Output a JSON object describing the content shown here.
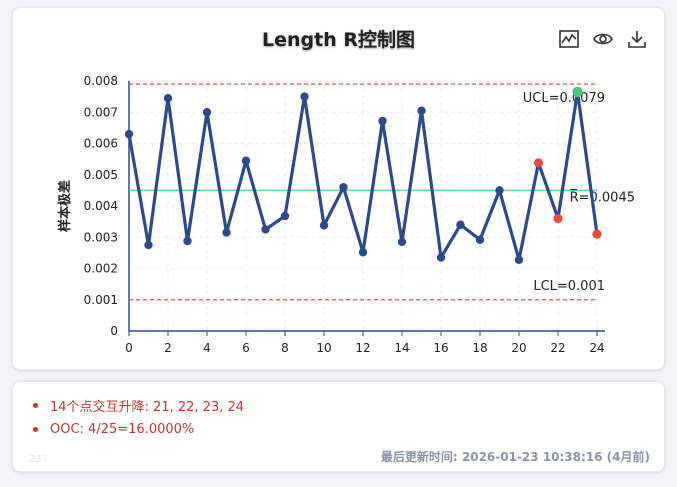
{
  "title": "Length R控制图",
  "icons": [
    "line-chart-icon",
    "eye-icon",
    "download-icon"
  ],
  "chart_data": {
    "type": "line",
    "ylabel": "样本极差",
    "xlabel": "",
    "ylim": [
      0,
      0.008
    ],
    "xlim": [
      0,
      24
    ],
    "yticks": [
      "0",
      "0.001",
      "0.002",
      "0.003",
      "0.004",
      "0.005",
      "0.006",
      "0.007",
      "0.008"
    ],
    "xticks": [
      "0",
      "2",
      "4",
      "6",
      "8",
      "10",
      "12",
      "14",
      "16",
      "18",
      "20",
      "22",
      "24"
    ],
    "x": [
      0,
      1,
      2,
      3,
      4,
      5,
      6,
      7,
      8,
      9,
      10,
      11,
      12,
      13,
      14,
      15,
      16,
      17,
      18,
      19,
      20,
      21,
      22,
      23,
      24
    ],
    "values": [
      0.0063,
      0.00275,
      0.00745,
      0.00288,
      0.007,
      0.00315,
      0.00545,
      0.00325,
      0.00368,
      0.0075,
      0.00338,
      0.0046,
      0.00252,
      0.00672,
      0.00285,
      0.00705,
      0.00235,
      0.0034,
      0.00292,
      0.0045,
      0.00228,
      0.00538,
      0.0036,
      0.00765,
      0.0031
    ],
    "ooc_points": [
      21,
      22,
      24
    ],
    "highlight_points": [
      23
    ],
    "limits": {
      "ucl": 0.0079,
      "ucl_label": "UCL=0.0079",
      "center": 0.0045,
      "center_label": "R̅=0.0045",
      "lcl": 0.001,
      "lcl_label": "LCL=0.001"
    },
    "colors": {
      "line": "#2c4a8a",
      "ooc": "#e74c3c",
      "highlight": "#4cc77a",
      "limit": "#e05a4f",
      "center": "#6fd3a8"
    },
    "grid": true
  },
  "rules": [
    {
      "text": "14个点交互升降: 21, 22, 23, 24"
    },
    {
      "text": "OOC: 4/25=16.0000%"
    }
  ],
  "footer": {
    "id": "237",
    "updated": "最后更新时间: 2026-01-23 10:38:16 (4月前)"
  }
}
